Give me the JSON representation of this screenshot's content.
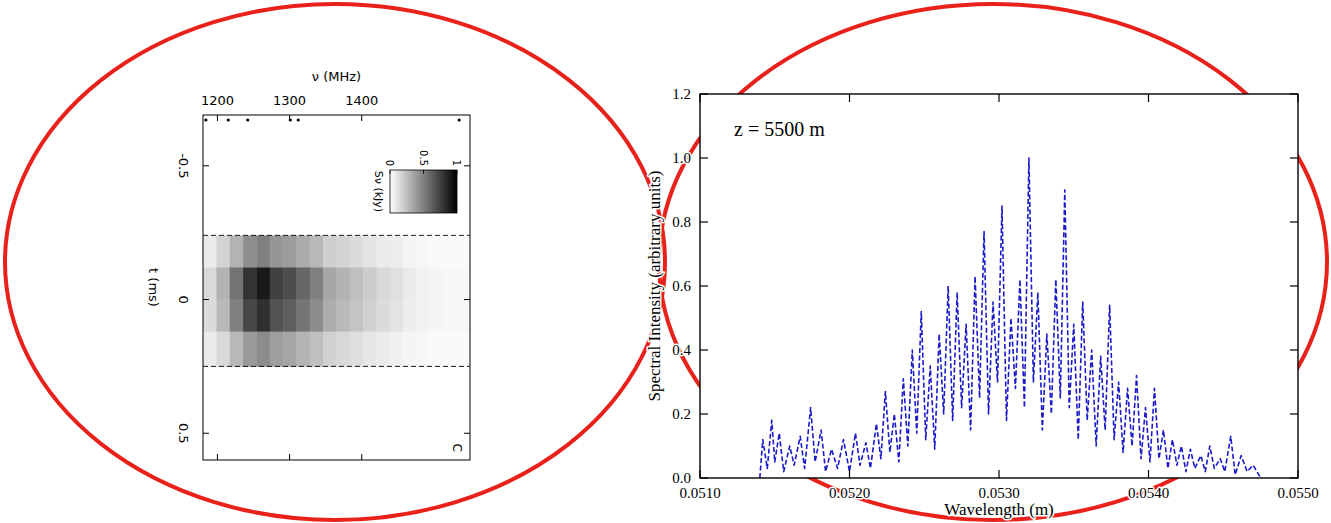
{
  "chart_data": [
    {
      "type": "heatmap",
      "x_label": "ν (MHz)",
      "y_label": "t (ms)",
      "label": "C",
      "xlim": [
        1180,
        1550
      ],
      "xticks": [
        1200,
        1300,
        1400
      ],
      "ylim": [
        0.6,
        -0.69
      ],
      "yticks": [
        -0.5,
        0,
        0.5
      ],
      "x_edges": [
        1180,
        1198.5,
        1217,
        1235.5,
        1254,
        1272.5,
        1291,
        1309.5,
        1328,
        1346.5,
        1365,
        1383.5,
        1402,
        1420.5,
        1439,
        1457.5,
        1476,
        1494.5,
        1513,
        1531.5,
        1550
      ],
      "y_edges": [
        -0.24,
        -0.12,
        0,
        0.12,
        0.25
      ],
      "cells": [
        [
          0.08,
          0.17,
          0.3,
          0.44,
          0.5,
          0.41,
          0.39,
          0.33,
          0.28,
          0.19,
          0.17,
          0.14,
          0.11,
          0.08,
          0.07,
          0.04,
          0.03,
          0.02,
          0.02,
          0.02
        ],
        [
          0.15,
          0.3,
          0.55,
          0.8,
          0.9,
          0.75,
          0.7,
          0.6,
          0.5,
          0.35,
          0.3,
          0.25,
          0.2,
          0.15,
          0.12,
          0.08,
          0.05,
          0.04,
          0.03,
          0.03
        ],
        [
          0.14,
          0.27,
          0.5,
          0.72,
          0.81,
          0.68,
          0.63,
          0.54,
          0.45,
          0.32,
          0.27,
          0.23,
          0.18,
          0.14,
          0.11,
          0.07,
          0.05,
          0.04,
          0.03,
          0.03
        ],
        [
          0.08,
          0.15,
          0.28,
          0.4,
          0.45,
          0.38,
          0.35,
          0.3,
          0.25,
          0.18,
          0.15,
          0.13,
          0.1,
          0.08,
          0.06,
          0.04,
          0.03,
          0.02,
          0.02,
          0.02
        ]
      ],
      "colorbar_label": "Sν (kJy)",
      "colorbar_range": [
        0,
        1
      ],
      "colorbar_ticks": [
        0,
        0.5,
        1
      ],
      "hlines": [
        -0.24,
        0.25
      ],
      "flagged": [
        1184,
        1215,
        1242,
        1301,
        1312,
        1535
      ]
    },
    {
      "type": "line",
      "x_label": "Wavelength (m)",
      "y_label": "Spectral Intensity (arbitrary units)",
      "annotation": "z = 5500 m",
      "xlim": [
        0.051,
        0.055
      ],
      "xticks": [
        {
          "value": 0.051,
          "label": "0.0510"
        },
        {
          "value": 0.052,
          "label": "0.0520"
        },
        {
          "value": 0.053,
          "label": "0.0530"
        },
        {
          "value": 0.054,
          "label": "0.0540"
        },
        {
          "value": 0.055,
          "label": "0.0550"
        }
      ],
      "ylim": [
        0,
        1.2
      ],
      "yticks": [
        {
          "value": 0,
          "label": "0.0"
        },
        0.2,
        0.4,
        0.6,
        0.8,
        {
          "value": 1,
          "label": "1.0"
        },
        1.2
      ],
      "color": "#1a1acc",
      "line_style": "dashed",
      "x": [
        0.0514,
        0.05142,
        0.05145,
        0.05148,
        0.0515,
        0.05153,
        0.05156,
        0.0516,
        0.05163,
        0.05167,
        0.0517,
        0.05174,
        0.05177,
        0.05181,
        0.05184,
        0.05188,
        0.05192,
        0.05196,
        0.052,
        0.05204,
        0.05207,
        0.05211,
        0.05214,
        0.05218,
        0.05221,
        0.05224,
        0.05227,
        0.0523,
        0.05233,
        0.05236,
        0.05239,
        0.05242,
        0.05245,
        0.05248,
        0.05251,
        0.05254,
        0.05257,
        0.0526,
        0.05263,
        0.05266,
        0.05269,
        0.05272,
        0.05275,
        0.05278,
        0.05281,
        0.05284,
        0.05287,
        0.0529,
        0.05293,
        0.05296,
        0.05299,
        0.05302,
        0.05305,
        0.05308,
        0.05311,
        0.05314,
        0.05317,
        0.0532,
        0.05323,
        0.05326,
        0.05329,
        0.05332,
        0.05335,
        0.05338,
        0.05341,
        0.05344,
        0.05347,
        0.0535,
        0.05353,
        0.05356,
        0.05359,
        0.05362,
        0.05365,
        0.05368,
        0.05371,
        0.05374,
        0.05377,
        0.0538,
        0.05383,
        0.05386,
        0.05389,
        0.05392,
        0.05395,
        0.05398,
        0.05401,
        0.05404,
        0.05407,
        0.0541,
        0.05413,
        0.05416,
        0.05419,
        0.05422,
        0.05425,
        0.05428,
        0.05431,
        0.05435,
        0.05438,
        0.05441,
        0.05444,
        0.05448,
        0.05451,
        0.05455,
        0.05458,
        0.05462,
        0.05466,
        0.0547,
        0.05475
      ],
      "values": [
        0,
        0.12,
        0.03,
        0.18,
        0.05,
        0.14,
        0.02,
        0.1,
        0.04,
        0.13,
        0.03,
        0.22,
        0.05,
        0.15,
        0.02,
        0.09,
        0.03,
        0.12,
        0.02,
        0.14,
        0.04,
        0.11,
        0.03,
        0.17,
        0.06,
        0.27,
        0.08,
        0.2,
        0.05,
        0.31,
        0.1,
        0.4,
        0.14,
        0.52,
        0.12,
        0.35,
        0.09,
        0.45,
        0.2,
        0.6,
        0.18,
        0.58,
        0.22,
        0.48,
        0.15,
        0.63,
        0.25,
        0.77,
        0.2,
        0.55,
        0.3,
        0.85,
        0.18,
        0.5,
        0.28,
        0.62,
        0.22,
        1.0,
        0.3,
        0.58,
        0.15,
        0.45,
        0.2,
        0.62,
        0.25,
        0.9,
        0.22,
        0.48,
        0.12,
        0.55,
        0.18,
        0.4,
        0.1,
        0.38,
        0.15,
        0.54,
        0.12,
        0.3,
        0.08,
        0.28,
        0.1,
        0.32,
        0.06,
        0.22,
        0.05,
        0.28,
        0.06,
        0.15,
        0.03,
        0.12,
        0.04,
        0.1,
        0.02,
        0.09,
        0.03,
        0.07,
        0.02,
        0.1,
        0.03,
        0.06,
        0.02,
        0.13,
        0.01,
        0.07,
        0.02,
        0.04,
        0
      ]
    }
  ]
}
